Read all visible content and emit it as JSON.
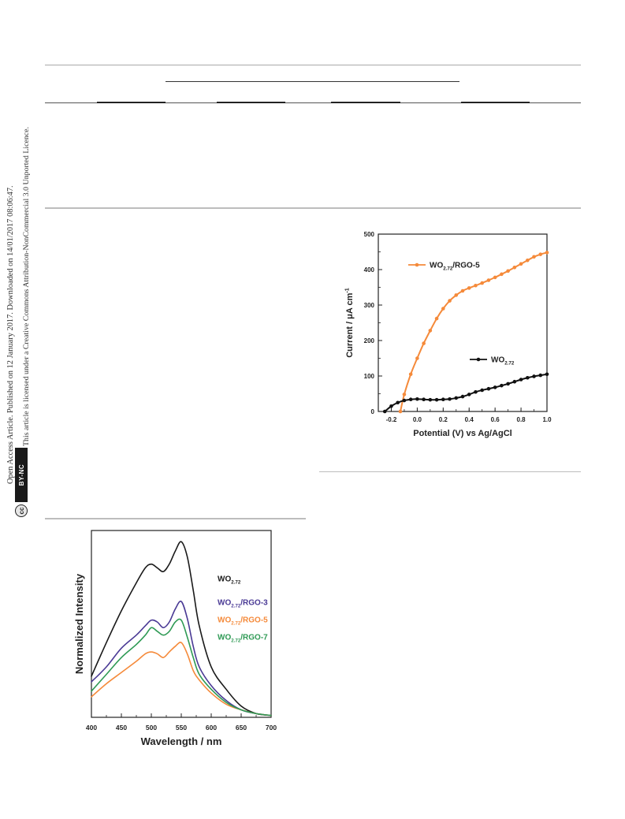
{
  "side_notice": {
    "line1": "Open Access Article. Published on 12 January 2017. Downloaded on 14/01/2017 08:06:47.",
    "line2": "This article is licensed under a Creative Commons Attribution-NonCommercial 3.0 Unported Licence.",
    "badge_cc": "cc",
    "badge_license": "BY-NC"
  },
  "chart_data": [
    {
      "type": "line",
      "title": "",
      "xlabel": "Potential (V) vs Ag/AgCl",
      "ylabel": "Current / μA cm-1",
      "xlim": [
        -0.3,
        1.0
      ],
      "ylim": [
        0,
        500
      ],
      "xticks": [
        "-0.2",
        "0.0",
        "0.2",
        "0.4",
        "0.6",
        "0.8",
        "1.0"
      ],
      "yticks": [
        "0",
        "100",
        "200",
        "300",
        "400",
        "500"
      ],
      "grid": false,
      "legend": "inside",
      "series": [
        {
          "name": "WO2.72/RGO-5",
          "color": "#f58a3a",
          "x": [
            -0.13,
            -0.1,
            -0.05,
            0.0,
            0.05,
            0.1,
            0.15,
            0.2,
            0.25,
            0.3,
            0.35,
            0.4,
            0.45,
            0.5,
            0.55,
            0.6,
            0.65,
            0.7,
            0.75,
            0.8,
            0.85,
            0.9,
            0.95,
            1.0
          ],
          "y": [
            0,
            48,
            105,
            150,
            192,
            228,
            262,
            290,
            312,
            328,
            340,
            348,
            355,
            362,
            370,
            378,
            387,
            396,
            406,
            416,
            426,
            436,
            443,
            448
          ]
        },
        {
          "name": "WO2.72",
          "color": "#111111",
          "x": [
            -0.25,
            -0.2,
            -0.15,
            -0.1,
            -0.05,
            0.0,
            0.05,
            0.1,
            0.15,
            0.2,
            0.25,
            0.3,
            0.35,
            0.4,
            0.45,
            0.5,
            0.55,
            0.6,
            0.65,
            0.7,
            0.75,
            0.8,
            0.85,
            0.9,
            0.95,
            1.0
          ],
          "y": [
            0,
            15,
            25,
            31,
            34,
            35,
            34,
            33,
            33,
            34,
            35,
            38,
            42,
            48,
            55,
            60,
            64,
            68,
            73,
            78,
            84,
            90,
            95,
            99,
            102,
            105
          ]
        }
      ]
    },
    {
      "type": "line",
      "title": "",
      "xlabel": "Wavelength / nm",
      "ylabel": "Normalized Intensity",
      "xlim": [
        400,
        700
      ],
      "ylim": [
        0,
        1
      ],
      "xticks": [
        "400",
        "450",
        "500",
        "550",
        "600",
        "650",
        "700"
      ],
      "yticks": [],
      "grid": false,
      "legend": "right",
      "x": [
        400,
        425,
        450,
        475,
        490,
        500,
        510,
        520,
        530,
        540,
        550,
        560,
        570,
        580,
        600,
        625,
        650,
        675,
        700
      ],
      "series": [
        {
          "name": "WO2.72",
          "color": "#1a1a1a",
          "values": [
            0.22,
            0.4,
            0.57,
            0.72,
            0.8,
            0.82,
            0.8,
            0.78,
            0.82,
            0.89,
            0.94,
            0.86,
            0.68,
            0.49,
            0.27,
            0.15,
            0.06,
            0.02,
            0.01
          ]
        },
        {
          "name": "WO2.72/RGO-3",
          "color": "#4a3a95",
          "values": [
            0.19,
            0.27,
            0.37,
            0.44,
            0.49,
            0.52,
            0.51,
            0.48,
            0.51,
            0.58,
            0.62,
            0.53,
            0.38,
            0.27,
            0.17,
            0.09,
            0.04,
            0.02,
            0.01
          ]
        },
        {
          "name": "WO2.72/RGO-5",
          "color": "#f58a3a",
          "values": [
            0.11,
            0.18,
            0.24,
            0.3,
            0.34,
            0.35,
            0.34,
            0.32,
            0.35,
            0.38,
            0.4,
            0.34,
            0.25,
            0.2,
            0.13,
            0.07,
            0.04,
            0.02,
            0.01
          ]
        },
        {
          "name": "WO2.72/RGO-7",
          "color": "#2f9a55",
          "values": [
            0.14,
            0.23,
            0.32,
            0.39,
            0.44,
            0.48,
            0.46,
            0.44,
            0.46,
            0.51,
            0.52,
            0.43,
            0.32,
            0.23,
            0.15,
            0.08,
            0.04,
            0.02,
            0.01
          ]
        }
      ]
    }
  ]
}
